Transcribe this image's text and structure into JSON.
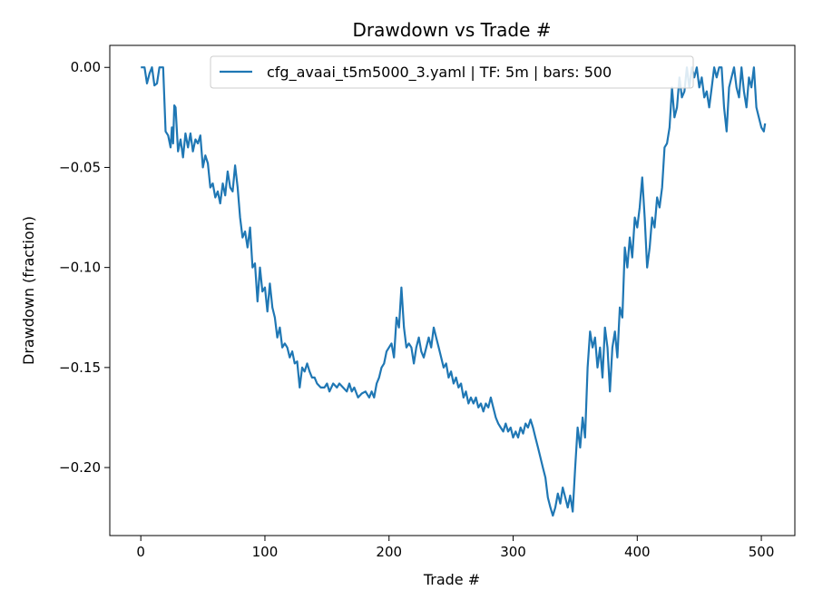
{
  "chart_data": {
    "type": "line",
    "title": "Drawdown vs Trade #",
    "xlabel": "Trade #",
    "ylabel": "Drawdown (fraction)",
    "xlim": [
      -25,
      527
    ],
    "ylim": [
      -0.234,
      0.011
    ],
    "x_ticks": [
      0,
      100,
      200,
      300,
      400,
      500
    ],
    "x_tick_labels": [
      "0",
      "100",
      "200",
      "300",
      "400",
      "500"
    ],
    "y_ticks": [
      0.0,
      -0.05,
      -0.1,
      -0.15,
      -0.2
    ],
    "y_tick_labels": [
      "0.00",
      "−0.05",
      "−0.10",
      "−0.15",
      "−0.20"
    ],
    "grid": false,
    "legend_position": "top",
    "series": [
      {
        "name": "cfg_avaai_t5m5000_3.yaml | TF: 5m | bars: 500",
        "color": "#1f77b4",
        "points": [
          [
            0,
            0.0
          ],
          [
            3,
            0.0
          ],
          [
            5,
            -0.008
          ],
          [
            7,
            -0.003
          ],
          [
            9,
            0.0
          ],
          [
            11,
            -0.009
          ],
          [
            13,
            -0.008
          ],
          [
            15,
            0.0
          ],
          [
            17,
            0.0
          ],
          [
            18,
            0.0
          ],
          [
            20,
            -0.032
          ],
          [
            22,
            -0.034
          ],
          [
            24,
            -0.04
          ],
          [
            25,
            -0.03
          ],
          [
            26,
            -0.038
          ],
          [
            27,
            -0.019
          ],
          [
            28,
            -0.02
          ],
          [
            30,
            -0.042
          ],
          [
            32,
            -0.036
          ],
          [
            34,
            -0.045
          ],
          [
            36,
            -0.033
          ],
          [
            38,
            -0.04
          ],
          [
            40,
            -0.033
          ],
          [
            42,
            -0.042
          ],
          [
            44,
            -0.036
          ],
          [
            46,
            -0.038
          ],
          [
            48,
            -0.034
          ],
          [
            50,
            -0.05
          ],
          [
            52,
            -0.044
          ],
          [
            54,
            -0.048
          ],
          [
            56,
            -0.06
          ],
          [
            58,
            -0.058
          ],
          [
            60,
            -0.065
          ],
          [
            62,
            -0.062
          ],
          [
            64,
            -0.068
          ],
          [
            66,
            -0.058
          ],
          [
            68,
            -0.064
          ],
          [
            70,
            -0.052
          ],
          [
            72,
            -0.06
          ],
          [
            74,
            -0.062
          ],
          [
            76,
            -0.049
          ],
          [
            78,
            -0.06
          ],
          [
            80,
            -0.075
          ],
          [
            82,
            -0.085
          ],
          [
            84,
            -0.082
          ],
          [
            86,
            -0.09
          ],
          [
            88,
            -0.08
          ],
          [
            90,
            -0.1
          ],
          [
            92,
            -0.098
          ],
          [
            94,
            -0.117
          ],
          [
            96,
            -0.1
          ],
          [
            98,
            -0.112
          ],
          [
            100,
            -0.11
          ],
          [
            102,
            -0.122
          ],
          [
            104,
            -0.108
          ],
          [
            106,
            -0.12
          ],
          [
            108,
            -0.125
          ],
          [
            110,
            -0.135
          ],
          [
            112,
            -0.13
          ],
          [
            114,
            -0.14
          ],
          [
            116,
            -0.138
          ],
          [
            118,
            -0.14
          ],
          [
            120,
            -0.145
          ],
          [
            122,
            -0.142
          ],
          [
            124,
            -0.148
          ],
          [
            126,
            -0.147
          ],
          [
            128,
            -0.16
          ],
          [
            130,
            -0.15
          ],
          [
            132,
            -0.152
          ],
          [
            134,
            -0.148
          ],
          [
            136,
            -0.152
          ],
          [
            138,
            -0.155
          ],
          [
            140,
            -0.155
          ],
          [
            142,
            -0.158
          ],
          [
            145,
            -0.16
          ],
          [
            148,
            -0.16
          ],
          [
            150,
            -0.158
          ],
          [
            152,
            -0.162
          ],
          [
            155,
            -0.158
          ],
          [
            158,
            -0.16
          ],
          [
            160,
            -0.158
          ],
          [
            163,
            -0.16
          ],
          [
            166,
            -0.162
          ],
          [
            168,
            -0.158
          ],
          [
            170,
            -0.162
          ],
          [
            172,
            -0.16
          ],
          [
            175,
            -0.165
          ],
          [
            178,
            -0.163
          ],
          [
            181,
            -0.162
          ],
          [
            184,
            -0.165
          ],
          [
            186,
            -0.162
          ],
          [
            188,
            -0.165
          ],
          [
            190,
            -0.158
          ],
          [
            192,
            -0.155
          ],
          [
            194,
            -0.15
          ],
          [
            196,
            -0.148
          ],
          [
            198,
            -0.142
          ],
          [
            200,
            -0.14
          ],
          [
            202,
            -0.138
          ],
          [
            204,
            -0.145
          ],
          [
            206,
            -0.125
          ],
          [
            208,
            -0.13
          ],
          [
            210,
            -0.11
          ],
          [
            212,
            -0.13
          ],
          [
            214,
            -0.14
          ],
          [
            216,
            -0.138
          ],
          [
            218,
            -0.14
          ],
          [
            220,
            -0.148
          ],
          [
            222,
            -0.14
          ],
          [
            224,
            -0.135
          ],
          [
            226,
            -0.142
          ],
          [
            228,
            -0.145
          ],
          [
            230,
            -0.14
          ],
          [
            232,
            -0.135
          ],
          [
            234,
            -0.14
          ],
          [
            236,
            -0.13
          ],
          [
            238,
            -0.135
          ],
          [
            240,
            -0.14
          ],
          [
            242,
            -0.145
          ],
          [
            244,
            -0.15
          ],
          [
            246,
            -0.148
          ],
          [
            248,
            -0.155
          ],
          [
            250,
            -0.152
          ],
          [
            252,
            -0.158
          ],
          [
            254,
            -0.155
          ],
          [
            256,
            -0.16
          ],
          [
            258,
            -0.158
          ],
          [
            260,
            -0.165
          ],
          [
            262,
            -0.162
          ],
          [
            264,
            -0.168
          ],
          [
            266,
            -0.165
          ],
          [
            268,
            -0.168
          ],
          [
            270,
            -0.165
          ],
          [
            272,
            -0.17
          ],
          [
            274,
            -0.168
          ],
          [
            276,
            -0.172
          ],
          [
            278,
            -0.168
          ],
          [
            280,
            -0.17
          ],
          [
            282,
            -0.165
          ],
          [
            284,
            -0.17
          ],
          [
            286,
            -0.175
          ],
          [
            288,
            -0.178
          ],
          [
            290,
            -0.18
          ],
          [
            292,
            -0.182
          ],
          [
            294,
            -0.178
          ],
          [
            296,
            -0.182
          ],
          [
            298,
            -0.18
          ],
          [
            300,
            -0.185
          ],
          [
            302,
            -0.182
          ],
          [
            304,
            -0.185
          ],
          [
            306,
            -0.18
          ],
          [
            308,
            -0.183
          ],
          [
            310,
            -0.178
          ],
          [
            312,
            -0.18
          ],
          [
            314,
            -0.176
          ],
          [
            316,
            -0.18
          ],
          [
            318,
            -0.185
          ],
          [
            320,
            -0.19
          ],
          [
            322,
            -0.195
          ],
          [
            324,
            -0.2
          ],
          [
            326,
            -0.205
          ],
          [
            328,
            -0.215
          ],
          [
            330,
            -0.22
          ],
          [
            332,
            -0.224
          ],
          [
            334,
            -0.22
          ],
          [
            336,
            -0.213
          ],
          [
            338,
            -0.218
          ],
          [
            340,
            -0.21
          ],
          [
            342,
            -0.215
          ],
          [
            344,
            -0.22
          ],
          [
            346,
            -0.214
          ],
          [
            348,
            -0.222
          ],
          [
            350,
            -0.2
          ],
          [
            352,
            -0.18
          ],
          [
            354,
            -0.19
          ],
          [
            356,
            -0.175
          ],
          [
            358,
            -0.185
          ],
          [
            360,
            -0.15
          ],
          [
            362,
            -0.132
          ],
          [
            364,
            -0.14
          ],
          [
            366,
            -0.135
          ],
          [
            368,
            -0.15
          ],
          [
            370,
            -0.14
          ],
          [
            372,
            -0.155
          ],
          [
            374,
            -0.13
          ],
          [
            376,
            -0.14
          ],
          [
            378,
            -0.162
          ],
          [
            380,
            -0.14
          ],
          [
            382,
            -0.132
          ],
          [
            384,
            -0.145
          ],
          [
            386,
            -0.12
          ],
          [
            388,
            -0.125
          ],
          [
            390,
            -0.09
          ],
          [
            392,
            -0.1
          ],
          [
            394,
            -0.085
          ],
          [
            396,
            -0.095
          ],
          [
            398,
            -0.075
          ],
          [
            400,
            -0.08
          ],
          [
            402,
            -0.07
          ],
          [
            404,
            -0.055
          ],
          [
            406,
            -0.075
          ],
          [
            408,
            -0.1
          ],
          [
            410,
            -0.09
          ],
          [
            412,
            -0.075
          ],
          [
            414,
            -0.08
          ],
          [
            416,
            -0.065
          ],
          [
            418,
            -0.07
          ],
          [
            420,
            -0.06
          ],
          [
            422,
            -0.04
          ],
          [
            424,
            -0.038
          ],
          [
            426,
            -0.03
          ],
          [
            428,
            -0.01
          ],
          [
            430,
            -0.025
          ],
          [
            432,
            -0.02
          ],
          [
            434,
            -0.005
          ],
          [
            436,
            -0.015
          ],
          [
            438,
            -0.012
          ],
          [
            440,
            0.0
          ],
          [
            442,
            -0.01
          ],
          [
            444,
            0.0
          ],
          [
            446,
            -0.005
          ],
          [
            448,
            0.0
          ],
          [
            450,
            -0.01
          ],
          [
            452,
            -0.005
          ],
          [
            454,
            -0.015
          ],
          [
            456,
            -0.012
          ],
          [
            458,
            -0.02
          ],
          [
            460,
            -0.01
          ],
          [
            462,
            0.0
          ],
          [
            464,
            -0.005
          ],
          [
            466,
            0.0
          ],
          [
            468,
            0.0
          ],
          [
            470,
            -0.02
          ],
          [
            472,
            -0.032
          ],
          [
            474,
            -0.01
          ],
          [
            476,
            -0.005
          ],
          [
            478,
            0.0
          ],
          [
            480,
            -0.01
          ],
          [
            482,
            -0.015
          ],
          [
            484,
            0.0
          ],
          [
            486,
            -0.012
          ],
          [
            488,
            -0.02
          ],
          [
            490,
            -0.005
          ],
          [
            492,
            -0.01
          ],
          [
            494,
            0.0
          ],
          [
            496,
            -0.02
          ],
          [
            498,
            -0.025
          ],
          [
            500,
            -0.03
          ],
          [
            502,
            -0.032
          ],
          [
            503,
            -0.028
          ]
        ]
      }
    ]
  }
}
